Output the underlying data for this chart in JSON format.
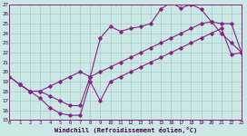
{
  "bg_color": "#cce8e5",
  "grid_color": "#aacfcc",
  "line_color": "#882288",
  "xlabel": "Windchill (Refroidissement éolien,°C)",
  "xlim": [
    0,
    23
  ],
  "ylim": [
    15,
    27
  ],
  "xticks": [
    0,
    1,
    2,
    3,
    4,
    5,
    6,
    7,
    8,
    9,
    10,
    11,
    12,
    13,
    14,
    15,
    16,
    17,
    18,
    19,
    20,
    21,
    22,
    23
  ],
  "yticks": [
    15,
    16,
    17,
    18,
    19,
    20,
    21,
    22,
    23,
    24,
    25,
    26,
    27
  ],
  "line1_x": [
    0,
    1,
    2,
    3,
    4,
    5,
    6,
    7,
    8,
    9,
    10,
    11,
    12,
    13,
    14,
    15,
    16,
    17,
    18,
    19,
    20,
    21,
    22,
    23
  ],
  "line1_y": [
    19.5,
    18.7,
    18.0,
    17.3,
    16.3,
    15.7,
    15.5,
    15.5,
    19.0,
    17.0,
    19.0,
    19.5,
    20.0,
    20.5,
    21.0,
    21.5,
    22.0,
    22.5,
    23.0,
    23.5,
    24.0,
    24.5,
    21.8,
    22.0
  ],
  "line2_x": [
    0,
    1,
    2,
    3,
    4,
    5,
    6,
    7,
    8,
    9,
    10,
    11,
    12,
    13,
    14,
    15,
    16,
    17,
    18,
    19,
    20,
    21,
    22,
    23
  ],
  "line2_y": [
    19.5,
    18.7,
    18.0,
    18.0,
    17.5,
    17.0,
    16.5,
    16.5,
    19.5,
    23.5,
    24.7,
    24.2,
    24.5,
    24.7,
    25.0,
    26.5,
    27.2,
    26.6,
    27.0,
    26.5,
    25.2,
    24.0,
    23.0,
    22.0
  ],
  "line3_x": [
    1,
    2,
    3,
    4,
    5,
    6,
    7,
    8,
    9,
    10,
    11,
    12,
    13,
    14,
    15,
    16,
    17,
    18,
    19,
    20,
    21,
    22,
    23
  ],
  "line3_y": [
    18.7,
    18.0,
    18.0,
    18.5,
    19.0,
    19.5,
    20.0,
    19.5,
    20.0,
    20.5,
    21.0,
    21.5,
    22.0,
    22.5,
    23.0,
    23.5,
    24.0,
    24.5,
    25.0,
    25.2,
    25.0,
    25.0,
    22.0
  ]
}
